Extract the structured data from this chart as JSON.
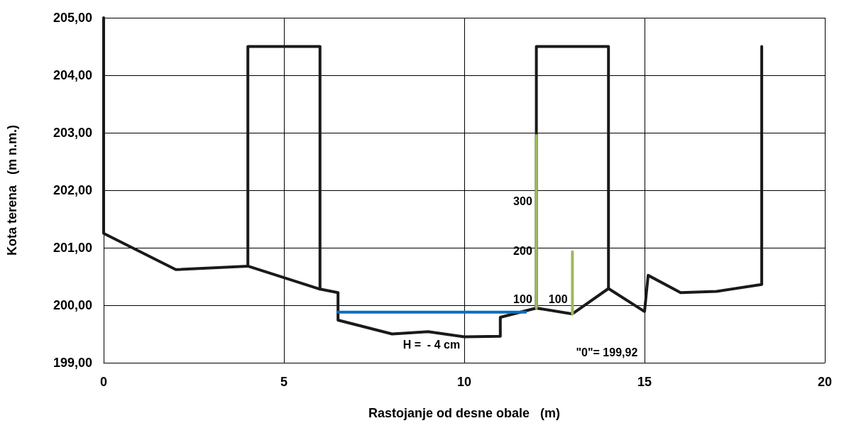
{
  "chart_data": {
    "type": "line",
    "xlabel": "Rastojanje od desne obale   (m)",
    "ylabel": "Kota terena   (m n.m.)",
    "xlim": [
      0,
      20
    ],
    "xticks": [
      0,
      5,
      10,
      15,
      20
    ],
    "ylim": [
      199,
      205
    ],
    "yticks": [
      {
        "value": 199,
        "label": "199,00"
      },
      {
        "value": 200,
        "label": "200,00"
      },
      {
        "value": 201,
        "label": "201,00"
      },
      {
        "value": 202,
        "label": "202,00"
      },
      {
        "value": 203,
        "label": "203,00"
      },
      {
        "value": 204,
        "label": "204,00"
      },
      {
        "value": 205,
        "label": "205,00"
      }
    ],
    "grid": true,
    "marker": "none",
    "line_style": "solid",
    "series": [
      {
        "color": "#1a1a1a",
        "x": [
          0,
          0,
          2,
          4,
          6,
          6.5,
          6.5,
          8,
          9,
          10,
          11,
          11,
          12,
          13,
          14,
          15,
          15.1,
          16,
          17,
          18.25,
          18.25
        ],
        "values": [
          205,
          201.25,
          200.62,
          200.68,
          200.28,
          200.22,
          199.74,
          199.5,
          199.54,
          199.45,
          199.46,
          199.79,
          199.95,
          199.85,
          200.29,
          199.89,
          200.52,
          200.22,
          200.24,
          200.36,
          204.5
        ]
      },
      {
        "color": "#1a1a1a",
        "x": [
          4,
          4,
          6,
          6
        ],
        "values": [
          200.68,
          204.5,
          204.5,
          200.28
        ]
      },
      {
        "color": "#1a1a1a",
        "x": [
          12,
          12,
          14,
          14
        ],
        "values": [
          199.95,
          204.5,
          204.5,
          200.29
        ]
      },
      {
        "color": "#0070c0",
        "x": [
          6.5,
          11.7
        ],
        "values": [
          199.88,
          199.88
        ]
      },
      {
        "color": "#9bbb59",
        "x": [
          12,
          12
        ],
        "values": [
          199.95,
          202.95
        ]
      },
      {
        "color": "#9bbb59",
        "x": [
          13,
          13
        ],
        "values": [
          199.85,
          200.93
        ]
      }
    ],
    "annotations": [
      "300",
      "200",
      "100",
      "100",
      "H =  - 4 cm",
      "\"0\"= 199,92"
    ]
  }
}
